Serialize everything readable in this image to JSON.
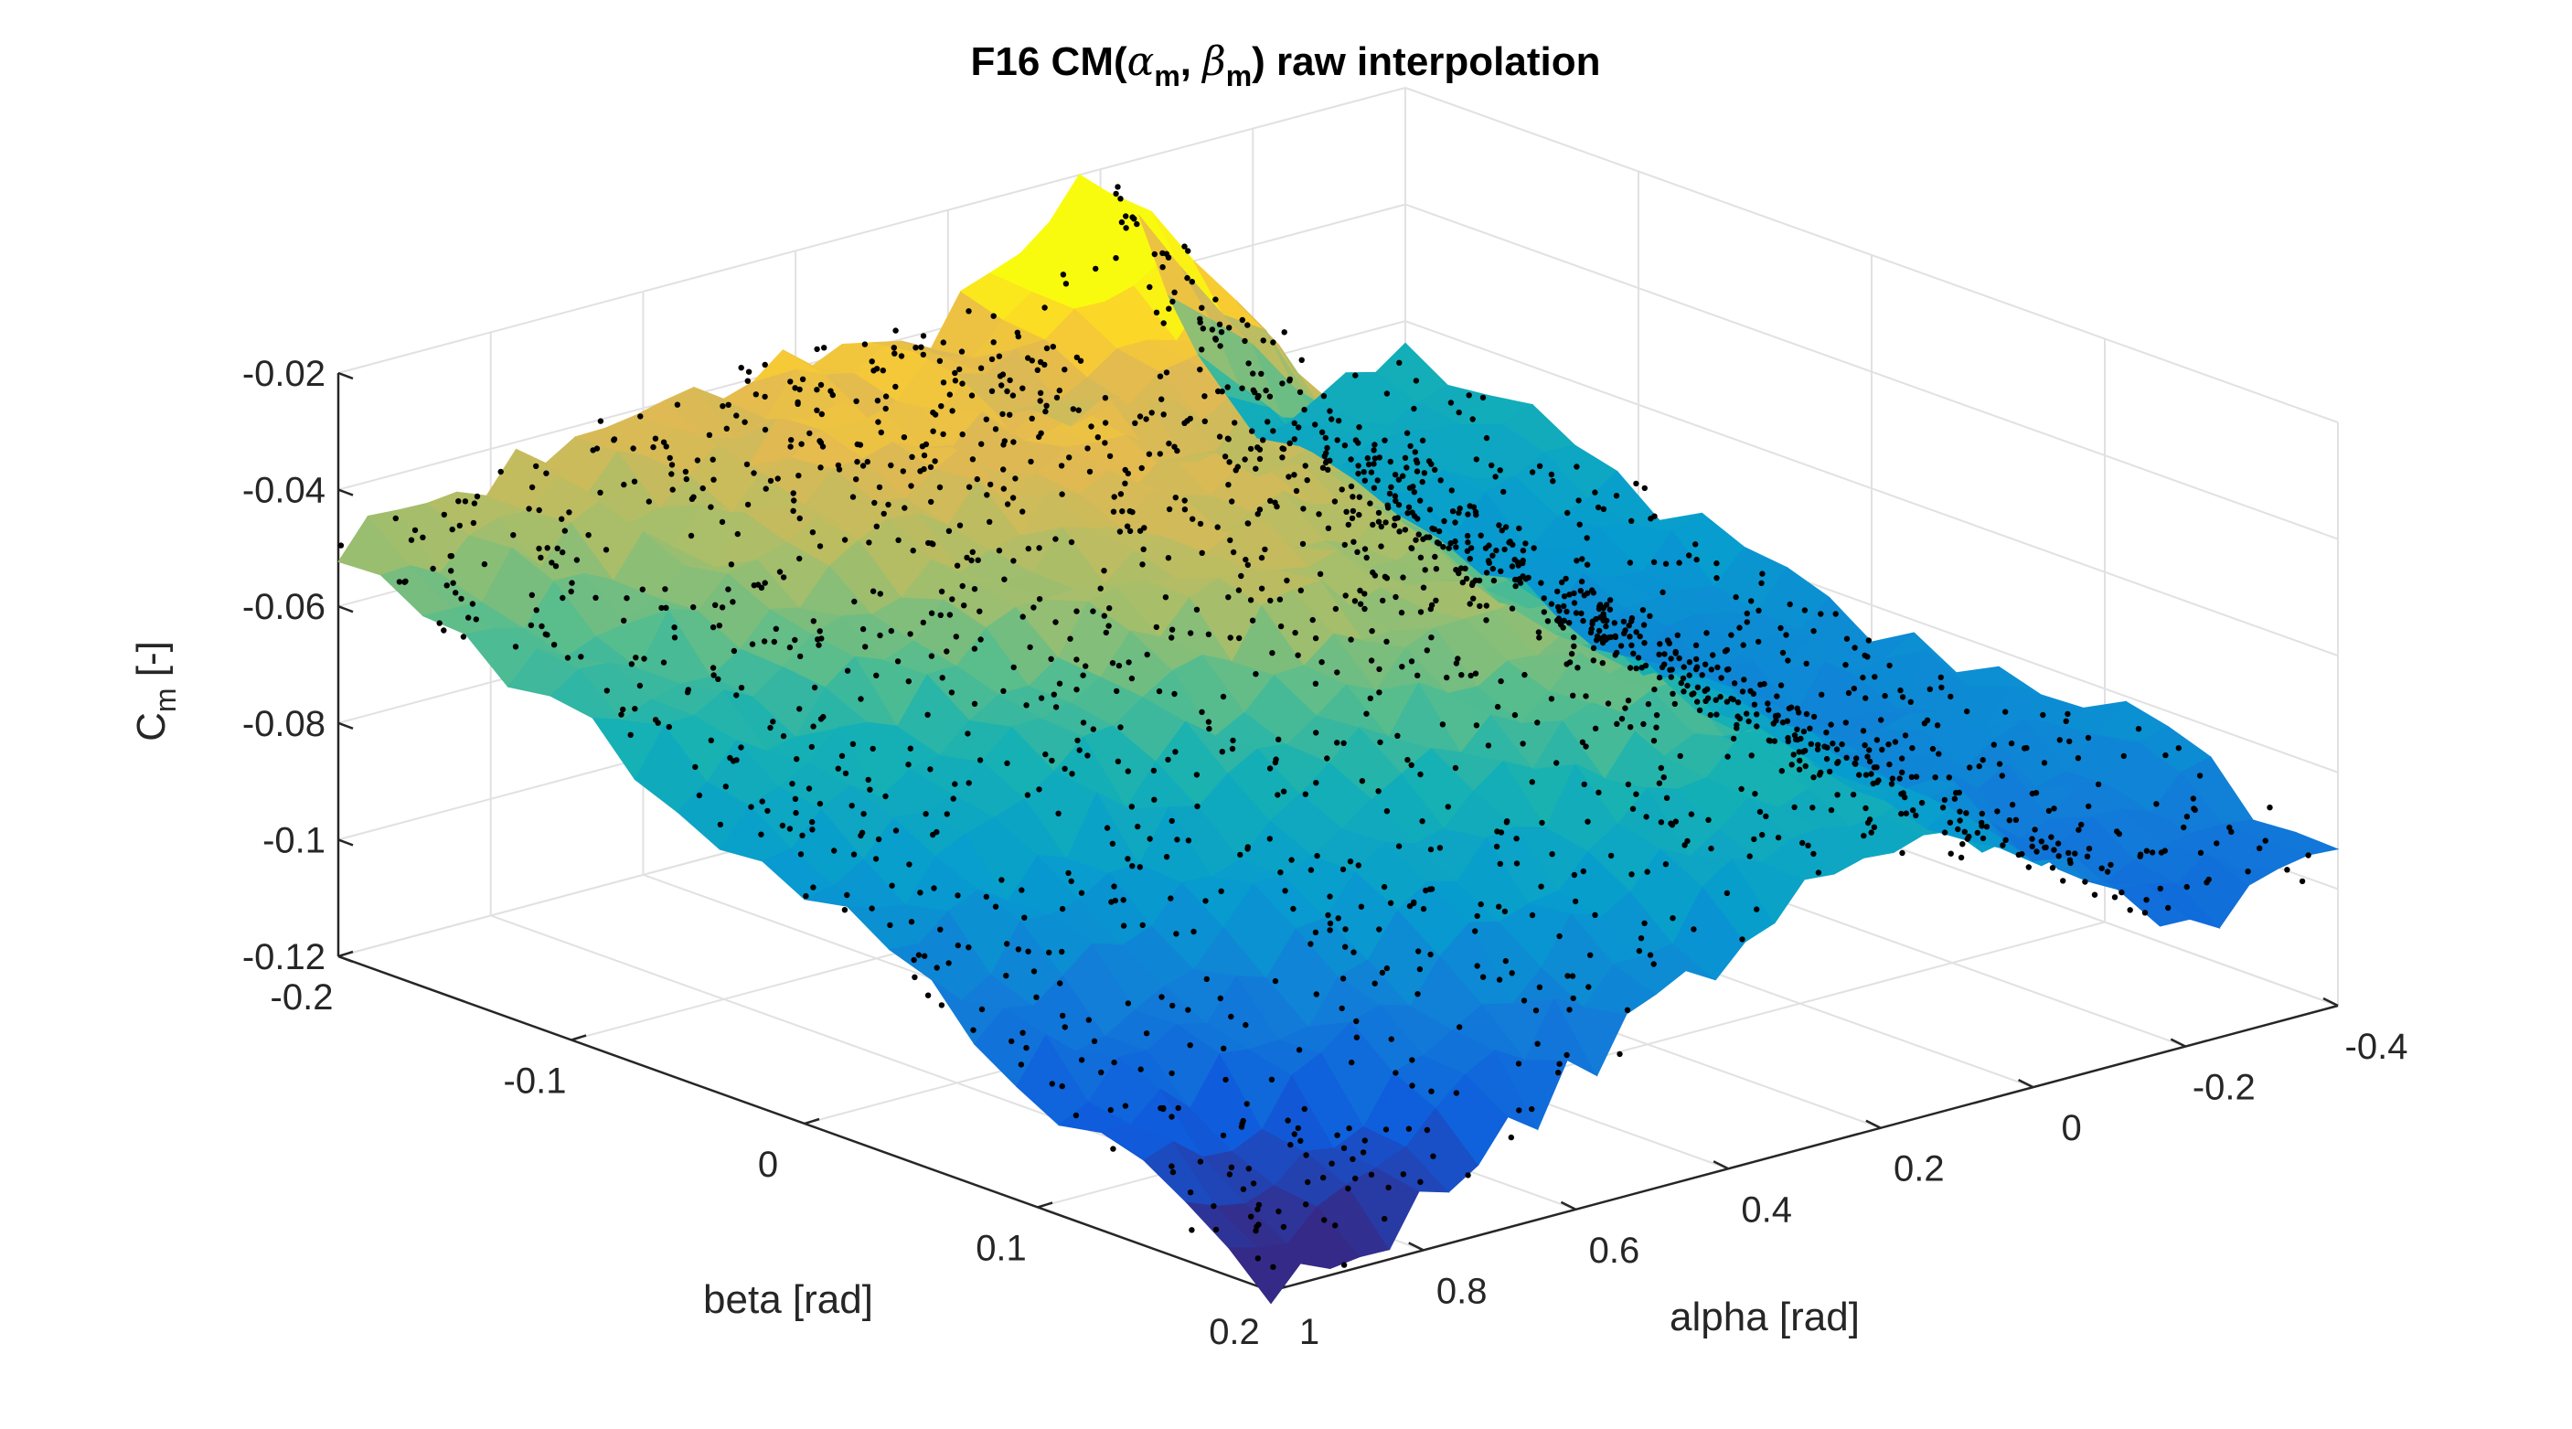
{
  "chart_data": {
    "type": "surface3d",
    "title": {
      "prefix": "F16 CM(",
      "alpha_symbol": "α",
      "alpha_sub": "m",
      "sep": ", ",
      "beta_symbol": "β",
      "beta_sub": "m",
      "suffix": ") raw interpolation"
    },
    "xlabel": "alpha [rad]",
    "ylabel": "beta [rad]",
    "zlabel_main": "C",
    "zlabel_sub": "m",
    "zlabel_unit": " [-]",
    "alpha_ticks": [
      "-0.4",
      "-0.2",
      "0",
      "0.2",
      "0.4",
      "0.6",
      "0.8",
      "1"
    ],
    "beta_ticks": [
      "-0.2",
      "-0.1",
      "0",
      "0.1",
      "0.2"
    ],
    "z_ticks": [
      "-0.02",
      "-0.04",
      "-0.06",
      "-0.08",
      "-0.1",
      "-0.12"
    ],
    "xlim": [
      -0.4,
      1.0
    ],
    "ylim": [
      -0.2,
      0.2
    ],
    "zlim": [
      -0.12,
      -0.02
    ],
    "colormap": "parula",
    "grid": true,
    "scatter_points": "black dots on surface",
    "surface": {
      "alpha": [
        -0.4,
        -0.2,
        0.0,
        0.2,
        0.4,
        0.6,
        0.8,
        1.0
      ],
      "beta": [
        -0.2,
        -0.1,
        0.0,
        0.1,
        0.2
      ],
      "cm": [
        [
          -0.065,
          -0.075,
          -0.085,
          -0.082,
          -0.095
        ],
        [
          -0.072,
          -0.082,
          -0.088,
          -0.09,
          -0.098
        ],
        [
          -0.02,
          -0.045,
          -0.065,
          -0.075,
          -0.08
        ],
        [
          -0.04,
          -0.042,
          -0.048,
          -0.055,
          -0.07
        ],
        [
          -0.038,
          -0.04,
          -0.045,
          -0.06,
          -0.083
        ],
        [
          -0.042,
          -0.045,
          -0.055,
          -0.075,
          -0.097
        ],
        [
          -0.045,
          -0.055,
          -0.068,
          -0.09,
          -0.113
        ],
        [
          -0.05,
          -0.065,
          -0.08,
          -0.1,
          -0.12
        ]
      ]
    }
  }
}
